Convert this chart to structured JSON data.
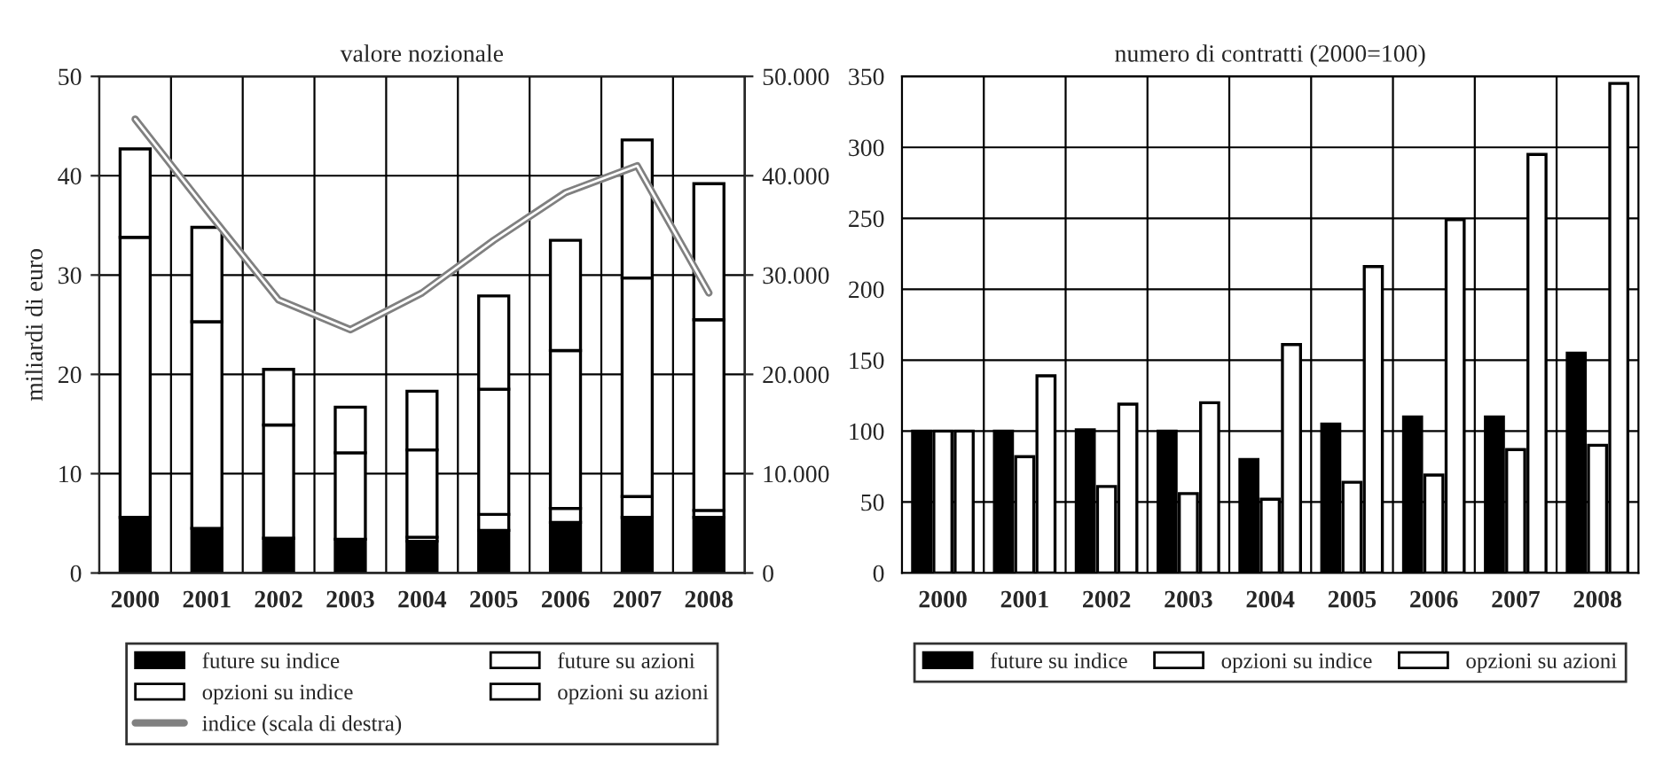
{
  "chart_data": [
    {
      "type": "bar",
      "title": "valore nozionale",
      "ylabel": "miliardi di euro",
      "stacked": true,
      "categories": [
        "2000",
        "2001",
        "2002",
        "2003",
        "2004",
        "2005",
        "2006",
        "2007",
        "2008"
      ],
      "series": [
        {
          "name": "future su indice",
          "color": "#000000",
          "values": [
            5.6,
            4.5,
            3.5,
            3.4,
            3.2,
            4.3,
            5.1,
            5.6,
            5.6
          ]
        },
        {
          "name": "future su azioni",
          "color": "#ffffff",
          "values": [
            null,
            null,
            null,
            null,
            0.4,
            1.6,
            1.4,
            2.1,
            0.7
          ]
        },
        {
          "name": "opzioni su indice",
          "color": "#ffffff",
          "values": [
            28.2,
            20.8,
            11.4,
            8.7,
            8.8,
            12.6,
            15.9,
            22.0,
            19.2
          ]
        },
        {
          "name": "opzioni su azioni",
          "color": "#ffffff",
          "values": [
            8.9,
            9.5,
            5.6,
            4.6,
            5.9,
            9.4,
            11.1,
            13.9,
            13.7
          ]
        },
        {
          "name": "indice (scala di destra)",
          "type": "line",
          "axis": "y2",
          "color": "#808080",
          "values": [
            45700,
            36500,
            27500,
            24500,
            28200,
            33500,
            38300,
            41000,
            28200
          ]
        }
      ],
      "ylim": [
        0,
        50
      ],
      "yticks": [
        0,
        10,
        20,
        30,
        40,
        50
      ],
      "y2lim": [
        0,
        50000
      ],
      "y2ticks": [
        0,
        {
          "value": 10000,
          "label": "10.000"
        },
        {
          "value": 20000,
          "label": "20.000"
        },
        {
          "value": 30000,
          "label": "30.000"
        },
        {
          "value": 40000,
          "label": "40.000"
        },
        {
          "value": 50000,
          "label": "50.000"
        }
      ],
      "grid": true,
      "legend": "bottom"
    },
    {
      "type": "bar",
      "title": "numero di contratti (2000=100)",
      "categories": [
        "2000",
        "2001",
        "2002",
        "2003",
        "2004",
        "2005",
        "2006",
        "2007",
        "2008"
      ],
      "series": [
        {
          "name": "future su indice",
          "color": "#000000",
          "values": [
            100,
            100,
            101,
            100,
            80,
            105,
            110,
            110,
            155
          ]
        },
        {
          "name": "opzioni su indice",
          "color": "#ffffff",
          "values": [
            100,
            82,
            61,
            56,
            52,
            64,
            69,
            87,
            90
          ]
        },
        {
          "name": "opzioni su azioni",
          "color": "#ffffff",
          "values": [
            100,
            139,
            119,
            120,
            161,
            216,
            249,
            295,
            345
          ]
        }
      ],
      "ylim": [
        0,
        350
      ],
      "yticks": [
        0,
        50,
        100,
        150,
        200,
        250,
        300,
        350
      ],
      "grid": true,
      "legend": "bottom"
    }
  ]
}
